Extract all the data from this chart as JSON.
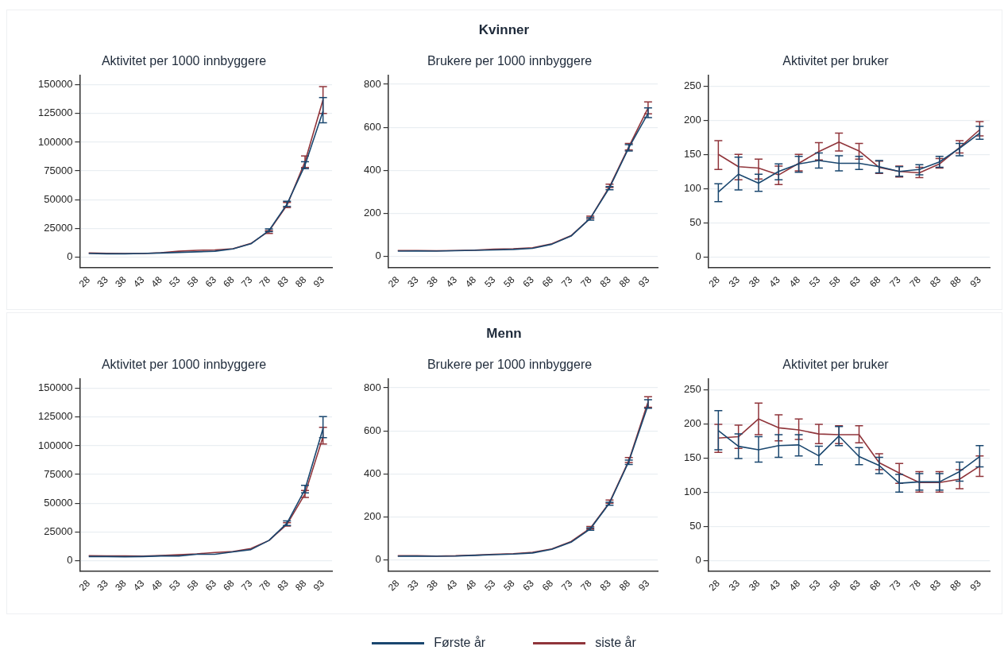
{
  "chart_data": [
    {
      "type": "other",
      "title": "Kvinner"
    },
    {
      "type": "line",
      "title": "Aktivitet per 1000 innbyggere",
      "categories": [
        "28",
        "33",
        "38",
        "43",
        "48",
        "53",
        "58",
        "63",
        "68",
        "73",
        "78",
        "83",
        "88",
        "93"
      ],
      "ylim": [
        -9000,
        158000
      ],
      "yticks": [
        0,
        25000,
        50000,
        75000,
        100000,
        125000,
        150000
      ],
      "grid": "y",
      "legend": "bottom",
      "series": [
        {
          "name": "Første år",
          "color": "#1a476f",
          "values": [
            3000,
            2800,
            2800,
            3000,
            3500,
            4000,
            4500,
            5000,
            7000,
            11500,
            23000,
            46000,
            80000,
            127000
          ],
          "errors": [
            null,
            null,
            null,
            null,
            null,
            null,
            null,
            null,
            null,
            null,
            [
              22000,
              24500
            ],
            [
              44000,
              48500
            ],
            [
              77000,
              83000
            ],
            [
              117000,
              139000
            ]
          ]
        },
        {
          "name": "siste år",
          "color": "#90353b",
          "values": [
            3500,
            3200,
            3000,
            3000,
            3700,
            5000,
            5800,
            6200,
            7200,
            11800,
            22500,
            45000,
            83000,
            137000
          ],
          "errors": [
            null,
            null,
            null,
            null,
            null,
            null,
            null,
            null,
            null,
            null,
            [
              20500,
              23000
            ],
            [
              43000,
              47500
            ],
            [
              78000,
              88000
            ],
            [
              125000,
              148500
            ]
          ]
        }
      ]
    },
    {
      "type": "line",
      "title": "Brukere per 1000 innbyggere",
      "categories": [
        "28",
        "33",
        "38",
        "43",
        "48",
        "53",
        "58",
        "63",
        "68",
        "73",
        "78",
        "83",
        "88",
        "93"
      ],
      "ylim": [
        -50,
        840
      ],
      "yticks": [
        0,
        200,
        400,
        600,
        800
      ],
      "grid": "y",
      "series": [
        {
          "color": "#1a476f",
          "values": [
            25,
            26,
            25,
            27,
            29,
            31,
            33,
            38,
            57,
            95,
            178,
            320,
            505,
            665
          ],
          "errors": [
            null,
            null,
            null,
            null,
            null,
            null,
            null,
            null,
            null,
            null,
            [
              169,
              180
            ],
            [
              310,
              325
            ],
            [
              490,
              520
            ],
            [
              645,
              690
            ]
          ]
        },
        {
          "color": "#90353b",
          "values": [
            28,
            28,
            27,
            28,
            30,
            34,
            36,
            41,
            59,
            97,
            178,
            325,
            510,
            690
          ],
          "errors": [
            null,
            null,
            null,
            null,
            null,
            null,
            null,
            null,
            null,
            null,
            [
              177,
              188
            ],
            [
              320,
              336
            ],
            [
              495,
              525
            ],
            [
              663,
              718
            ]
          ]
        }
      ]
    },
    {
      "type": "line",
      "title": "Aktivitet per bruker",
      "categories": [
        "28",
        "33",
        "38",
        "43",
        "48",
        "53",
        "58",
        "63",
        "68",
        "73",
        "78",
        "83",
        "88",
        "93"
      ],
      "ylim": [
        -15,
        265
      ],
      "yticks": [
        0,
        50,
        100,
        150,
        200,
        250
      ],
      "grid": "y",
      "series": [
        {
          "color": "#1a476f",
          "values": [
            95,
            121,
            108,
            125,
            136,
            141,
            137,
            137,
            132,
            125,
            128,
            139,
            159,
            181
          ],
          "errors": [
            [
              81,
              107
            ],
            [
              98,
              146
            ],
            [
              96,
              121
            ],
            [
              113,
              136
            ],
            [
              124,
              147
            ],
            [
              130,
              152
            ],
            [
              126,
              148
            ],
            [
              128,
              147
            ],
            [
              123,
              141
            ],
            [
              118,
              132
            ],
            [
              120,
              135
            ],
            [
              131,
              147
            ],
            [
              148,
              166
            ],
            [
              172,
              191
            ]
          ]
        },
        {
          "color": "#90353b",
          "values": [
            150,
            132,
            130,
            120,
            137,
            154,
            168,
            155,
            131,
            125,
            123,
            136,
            160,
            186
          ],
          "errors": [
            [
              128,
              170
            ],
            [
              113,
              150
            ],
            [
              114,
              143
            ],
            [
              106,
              133
            ],
            [
              126,
              150
            ],
            [
              142,
              167
            ],
            [
              155,
              181
            ],
            [
              143,
              166
            ],
            [
              122,
              140
            ],
            [
              117,
              133
            ],
            [
              116,
              131
            ],
            [
              130,
              144
            ],
            [
              152,
              170
            ],
            [
              177,
              198
            ]
          ]
        }
      ]
    },
    {
      "type": "other",
      "title": "Menn"
    },
    {
      "type": "line",
      "title": "Aktivitet per 1000 innbyggere",
      "categories": [
        "28",
        "33",
        "38",
        "43",
        "48",
        "53",
        "58",
        "63",
        "68",
        "73",
        "78",
        "83",
        "88",
        "93"
      ],
      "ylim": [
        -9000,
        158000
      ],
      "yticks": [
        0,
        25000,
        50000,
        75000,
        100000,
        125000,
        150000
      ],
      "grid": "y",
      "series": [
        {
          "color": "#1a476f",
          "values": [
            3500,
            3500,
            3300,
            3500,
            4000,
            4000,
            5500,
            5500,
            7500,
            9500,
            17500,
            32500,
            62000,
            115000
          ],
          "errors": [
            null,
            null,
            null,
            null,
            null,
            null,
            null,
            null,
            null,
            null,
            null,
            [
              30500,
              34500
            ],
            [
              59000,
              65500
            ],
            [
              107000,
              125500
            ]
          ]
        },
        {
          "color": "#90353b",
          "values": [
            4200,
            4000,
            4000,
            3800,
            4300,
            5000,
            5800,
            7000,
            7800,
            10500,
            17500,
            31500,
            58000,
            108000
          ],
          "errors": [
            null,
            null,
            null,
            null,
            null,
            null,
            null,
            null,
            null,
            null,
            null,
            [
              30000,
              33000
            ],
            [
              55000,
              61000
            ],
            [
              101500,
              116000
            ]
          ]
        }
      ]
    },
    {
      "type": "line",
      "title": "Brukere per 1000 innbyggere",
      "categories": [
        "28",
        "33",
        "38",
        "43",
        "48",
        "53",
        "58",
        "63",
        "68",
        "73",
        "78",
        "83",
        "88",
        "93"
      ],
      "ylim": [
        -50,
        840
      ],
      "yticks": [
        0,
        200,
        400,
        600,
        800
      ],
      "grid": "y",
      "series": [
        {
          "color": "#1a476f",
          "values": [
            18,
            19,
            18,
            19,
            22,
            25,
            28,
            33,
            50,
            83,
            145,
            265,
            458,
            720
          ],
          "errors": [
            null,
            null,
            null,
            null,
            null,
            null,
            null,
            null,
            null,
            null,
            [
              139,
              150
            ],
            [
              255,
              269
            ],
            [
              444,
              464
            ],
            [
              705,
              745
            ]
          ]
        },
        {
          "color": "#90353b",
          "values": [
            20,
            20,
            19,
            20,
            23,
            27,
            30,
            36,
            52,
            86,
            148,
            268,
            462,
            735
          ],
          "errors": [
            null,
            null,
            null,
            null,
            null,
            null,
            null,
            null,
            null,
            null,
            [
              144,
              156
            ],
            [
              264,
              279
            ],
            [
              453,
              476
            ],
            [
              710,
              759
            ]
          ]
        }
      ]
    },
    {
      "type": "line",
      "title": "Aktivitet per bruker",
      "categories": [
        "28",
        "33",
        "38",
        "43",
        "48",
        "53",
        "58",
        "63",
        "68",
        "73",
        "78",
        "83",
        "88",
        "93"
      ],
      "ylim": [
        -15,
        265
      ],
      "yticks": [
        0,
        50,
        100,
        150,
        200,
        250
      ],
      "grid": "y",
      "series": [
        {
          "color": "#1a476f",
          "values": [
            190,
            167,
            162,
            168,
            169,
            153,
            182,
            152,
            139,
            113,
            115,
            115,
            130,
            152
          ],
          "errors": [
            [
              162,
              219
            ],
            [
              149,
              185
            ],
            [
              144,
              181
            ],
            [
              151,
              184
            ],
            [
              153,
              184
            ],
            [
              140,
              167
            ],
            [
              168,
              196
            ],
            [
              140,
              165
            ],
            [
              127,
              151
            ],
            [
              100,
              126
            ],
            [
              103,
              127
            ],
            [
              103,
              127
            ],
            [
              116,
              144
            ],
            [
              137,
              168
            ]
          ]
        },
        {
          "color": "#90353b",
          "values": [
            179,
            181,
            207,
            194,
            191,
            185,
            184,
            184,
            143,
            128,
            114,
            114,
            119,
            138
          ],
          "errors": [
            [
              158,
              199
            ],
            [
              164,
              198
            ],
            [
              184,
              230
            ],
            [
              175,
              213
            ],
            [
              177,
              207
            ],
            [
              171,
              199
            ],
            [
              171,
              197
            ],
            [
              172,
              197
            ],
            [
              133,
              156
            ],
            [
              113,
              142
            ],
            [
              100,
              130
            ],
            [
              100,
              130
            ],
            [
              105,
              133
            ],
            [
              123,
              153
            ]
          ]
        }
      ]
    }
  ]
}
